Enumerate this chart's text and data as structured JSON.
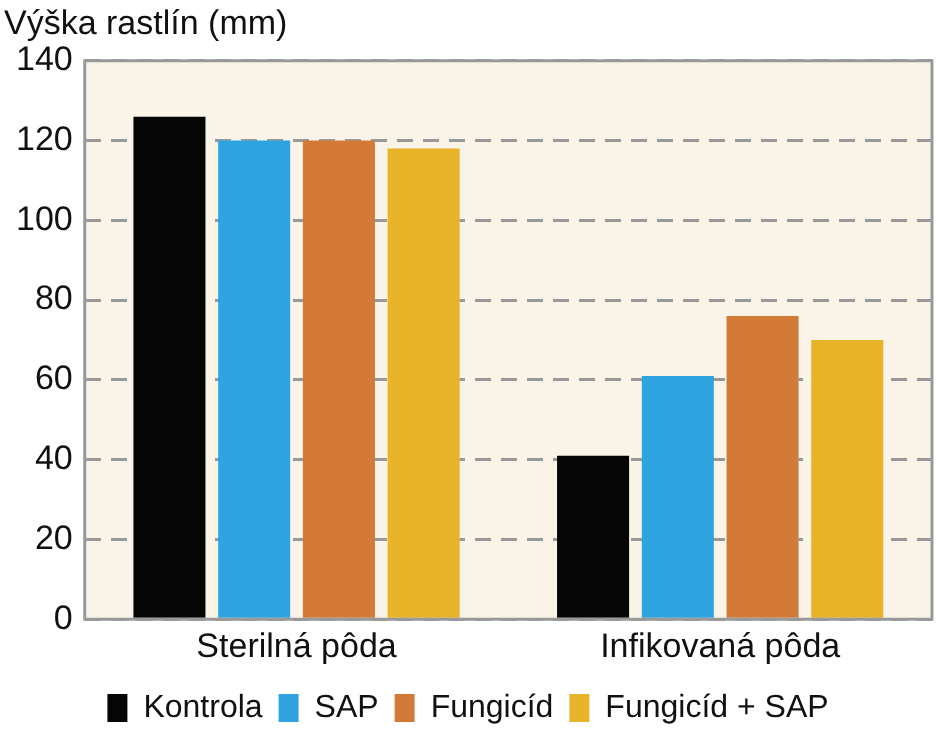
{
  "chart_data": {
    "type": "bar",
    "ylabel": "Výška rastlín (mm)",
    "categories": [
      "Sterilná pôda",
      "Infikovaná pôda"
    ],
    "series": [
      {
        "name": "Kontrola",
        "color": "#050505",
        "values": [
          126,
          41
        ]
      },
      {
        "name": "SAP",
        "color": "#2ea3e0",
        "values": [
          120,
          61
        ]
      },
      {
        "name": "Fungicíd",
        "color": "#d47a38",
        "values": [
          120,
          76
        ]
      },
      {
        "name": "Fungicíd + SAP",
        "color": "#e8b328",
        "values": [
          118,
          70
        ]
      }
    ],
    "ylim": [
      0,
      140
    ],
    "yticks": [
      0,
      20,
      40,
      60,
      80,
      100,
      120,
      140
    ],
    "grid": "y",
    "legend": "bottom"
  }
}
